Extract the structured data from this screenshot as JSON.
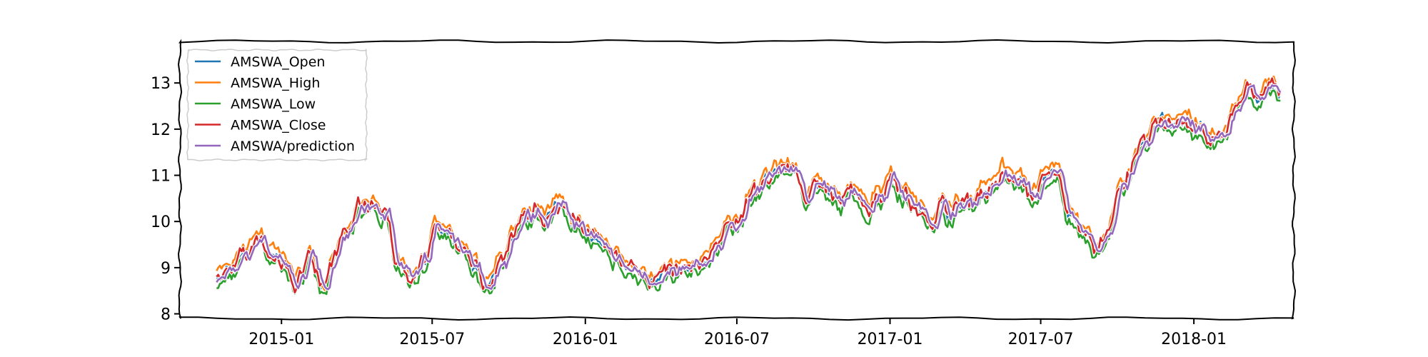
{
  "chart_data": {
    "type": "line",
    "title": "",
    "xlabel": "",
    "ylabel": "",
    "x_range": [
      "2014-09-01",
      "2018-05-01"
    ],
    "ylim": [
      7.9,
      13.9
    ],
    "grid": false,
    "legend_position": "top-left",
    "x_tick_labels": [
      "2015-01",
      "2015-07",
      "2016-01",
      "2016-07",
      "2017-01",
      "2017-07",
      "2018-01"
    ],
    "x_tick_dates": [
      "2015-01-01",
      "2015-07-01",
      "2016-01-01",
      "2016-07-01",
      "2017-01-01",
      "2017-07-01",
      "2018-01-01"
    ],
    "y_ticks": [
      8,
      9,
      10,
      11,
      12,
      13
    ],
    "y_tick_labels": [
      "8",
      "9",
      "10",
      "11",
      "12",
      "13"
    ],
    "anchor_series": {
      "x": [
        "2014-10-15",
        "2014-11-01",
        "2014-11-20",
        "2014-12-05",
        "2014-12-20",
        "2015-01-05",
        "2015-01-20",
        "2015-02-05",
        "2015-02-20",
        "2015-03-05",
        "2015-03-20",
        "2015-04-05",
        "2015-04-20",
        "2015-05-05",
        "2015-05-20",
        "2015-06-05",
        "2015-06-20",
        "2015-07-05",
        "2015-07-20",
        "2015-08-05",
        "2015-08-20",
        "2015-09-05",
        "2015-09-20",
        "2015-10-05",
        "2015-10-20",
        "2015-11-05",
        "2015-11-20",
        "2015-12-05",
        "2015-12-20",
        "2016-01-05",
        "2016-01-20",
        "2016-02-05",
        "2016-02-20",
        "2016-03-05",
        "2016-03-20",
        "2016-04-05",
        "2016-04-20",
        "2016-05-05",
        "2016-05-20",
        "2016-06-05",
        "2016-06-20",
        "2016-07-05",
        "2016-07-20",
        "2016-08-05",
        "2016-08-20",
        "2016-09-05",
        "2016-09-20",
        "2016-10-05",
        "2016-10-20",
        "2016-11-05",
        "2016-11-20",
        "2016-12-05",
        "2016-12-20",
        "2017-01-05",
        "2017-01-20",
        "2017-02-05",
        "2017-02-20",
        "2017-03-05",
        "2017-03-20",
        "2017-04-05",
        "2017-04-20",
        "2017-05-05",
        "2017-05-20",
        "2017-06-05",
        "2017-06-20",
        "2017-07-05",
        "2017-07-20",
        "2017-08-05",
        "2017-08-20",
        "2017-09-05",
        "2017-09-20",
        "2017-10-05",
        "2017-10-20",
        "2017-11-05",
        "2017-11-20",
        "2017-12-05",
        "2017-12-20",
        "2018-01-05",
        "2018-01-20",
        "2018-02-05",
        "2018-02-20",
        "2018-03-05",
        "2018-03-20",
        "2018-04-05",
        "2018-04-15"
      ],
      "y": [
        8.8,
        8.9,
        9.3,
        9.7,
        9.2,
        9.1,
        8.6,
        9.3,
        8.5,
        9.2,
        9.7,
        10.2,
        10.3,
        10.1,
        9.2,
        8.8,
        9.2,
        9.8,
        9.6,
        9.3,
        9.0,
        8.6,
        9.0,
        9.6,
        10.0,
        10.2,
        10.1,
        10.4,
        10.0,
        9.7,
        9.4,
        9.2,
        9.0,
        8.9,
        8.8,
        8.85,
        8.9,
        8.95,
        9.0,
        9.5,
        9.8,
        10.1,
        10.6,
        10.9,
        11.1,
        11.2,
        10.6,
        10.8,
        10.5,
        10.4,
        10.7,
        10.3,
        10.6,
        11.0,
        10.5,
        10.2,
        10.0,
        10.3,
        10.2,
        10.4,
        10.6,
        10.8,
        11.0,
        10.9,
        10.5,
        10.8,
        11.1,
        10.2,
        9.8,
        9.4,
        9.6,
        10.8,
        11.2,
        11.7,
        12.2,
        12.1,
        12.2,
        12.0,
        11.7,
        11.7,
        12.5,
        12.9,
        12.6,
        12.9,
        12.6
      ]
    },
    "series": [
      {
        "name": "AMSWA_Open",
        "color": "#1f77b4",
        "offset": 0.0,
        "lag_days": 0,
        "noise": 0.14
      },
      {
        "name": "AMSWA_High",
        "color": "#ff7f0e",
        "offset": 0.15,
        "lag_days": 0,
        "noise": 0.16
      },
      {
        "name": "AMSWA_Low",
        "color": "#2ca02c",
        "offset": -0.13,
        "lag_days": 0,
        "noise": 0.16
      },
      {
        "name": "AMSWA_Close",
        "color": "#d62728",
        "offset": 0.02,
        "lag_days": 0,
        "noise": 0.18
      },
      {
        "name": "AMSWA/prediction",
        "color": "#9467bd",
        "offset": 0.0,
        "lag_days": 4,
        "noise": 0.1
      }
    ]
  }
}
